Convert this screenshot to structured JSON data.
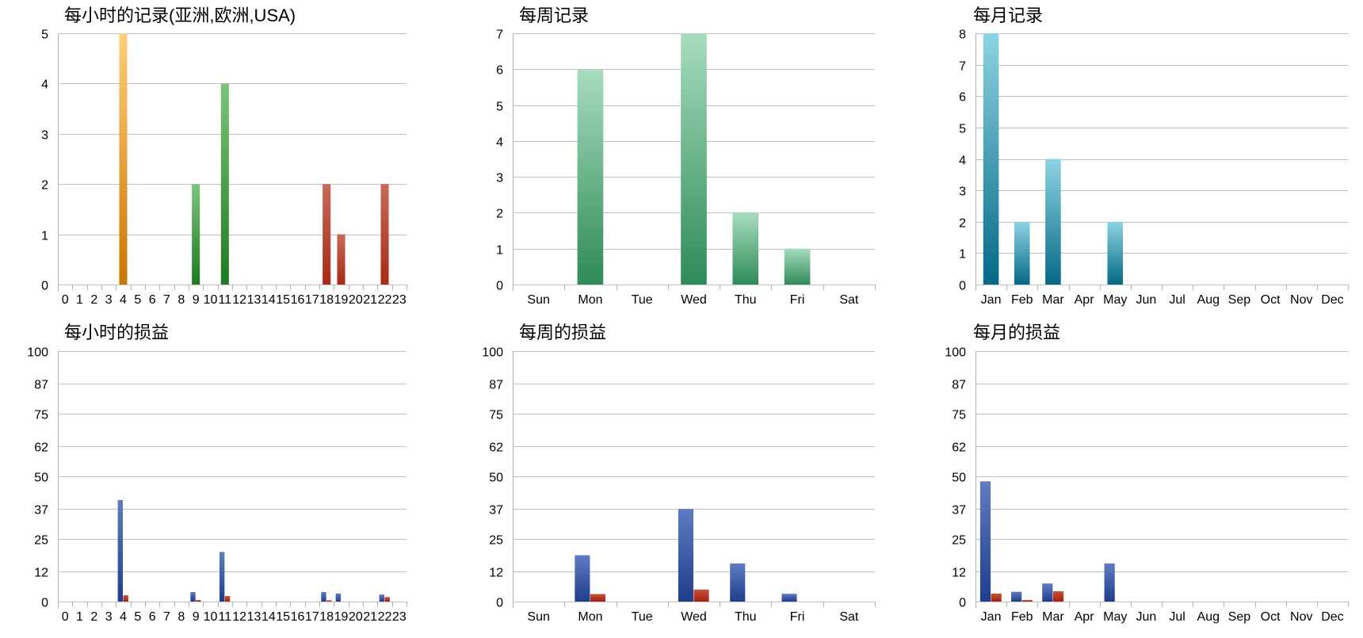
{
  "chart_data": [
    {
      "id": "hourly-records",
      "type": "bar",
      "title": "每小时的记录(亚洲,欧洲,USA)",
      "categories": [
        "0",
        "1",
        "2",
        "3",
        "4",
        "5",
        "6",
        "7",
        "8",
        "9",
        "10",
        "11",
        "12",
        "13",
        "14",
        "15",
        "16",
        "17",
        "18",
        "19",
        "20",
        "21",
        "22",
        "23"
      ],
      "values": [
        0,
        0,
        0,
        0,
        5,
        0,
        0,
        0,
        0,
        2,
        0,
        4,
        0,
        0,
        0,
        0,
        0,
        0,
        2,
        1,
        0,
        0,
        2,
        0
      ],
      "bar_colors": [
        "#a85d00",
        "#a85d00",
        "#a85d00",
        "#a85d00",
        "#c97800",
        "#a85d00",
        "#a85d00",
        "#a85d00",
        "#a85d00",
        "#1e7a1e",
        "#1e7a1e",
        "#1e7a1e",
        "#1e7a1e",
        "#1e7a1e",
        "#1e7a1e",
        "#1e7a1e",
        "#1e7a1e",
        "#1e7a1e",
        "#a82a14",
        "#a82a14",
        "#a82a14",
        "#a82a14",
        "#a82a14",
        "#a82a14"
      ],
      "bar_colors_light": [
        "#ffc86e",
        "#ffc86e",
        "#ffc86e",
        "#ffc86e",
        "#ffcf7a",
        "#ffc86e",
        "#ffc86e",
        "#ffc86e",
        "#ffc86e",
        "#7cc47c",
        "#7cc47c",
        "#7cc47c",
        "#7cc47c",
        "#7cc47c",
        "#7cc47c",
        "#7cc47c",
        "#7cc47c",
        "#7cc47c",
        "#c76a5a",
        "#c76a5a",
        "#c76a5a",
        "#c76a5a",
        "#c76a5a",
        "#c76a5a"
      ],
      "yticks": [
        0,
        1,
        2,
        3,
        4,
        5
      ],
      "ylim": [
        0,
        5
      ],
      "grid": true
    },
    {
      "id": "weekly-records",
      "type": "bar",
      "title": "每周记录",
      "categories": [
        "Sun",
        "Mon",
        "Tue",
        "Wed",
        "Thu",
        "Fri",
        "Sat"
      ],
      "values": [
        0,
        6,
        0,
        7,
        2,
        1,
        0
      ],
      "color": "#2e8b57",
      "color_light": "#a8dcbf",
      "yticks": [
        0,
        1,
        2,
        3,
        4,
        5,
        6,
        7
      ],
      "ylim": [
        0,
        7
      ],
      "grid": true
    },
    {
      "id": "monthly-records",
      "type": "bar",
      "title": "每月记录",
      "categories": [
        "Jan",
        "Feb",
        "Mar",
        "Apr",
        "May",
        "Jun",
        "Jul",
        "Aug",
        "Sep",
        "Oct",
        "Nov",
        "Dec"
      ],
      "values": [
        8,
        2,
        4,
        0,
        2,
        0,
        0,
        0,
        0,
        0,
        0,
        0
      ],
      "color": "#046985",
      "color_light": "#8ed3e3",
      "yticks": [
        0,
        1,
        2,
        3,
        4,
        5,
        6,
        7,
        8
      ],
      "ylim": [
        0,
        8
      ],
      "grid": true
    },
    {
      "id": "hourly-pnl",
      "type": "bar",
      "title": "每小时的损益",
      "categories": [
        "0",
        "1",
        "2",
        "3",
        "4",
        "5",
        "6",
        "7",
        "8",
        "9",
        "10",
        "11",
        "12",
        "13",
        "14",
        "15",
        "16",
        "17",
        "18",
        "19",
        "20",
        "21",
        "22",
        "23"
      ],
      "series": [
        {
          "values": [
            0,
            0,
            0,
            0,
            40.5,
            0,
            0,
            0,
            0,
            3.8,
            0,
            19.8,
            0,
            0,
            0,
            0,
            0,
            0,
            3.8,
            3.2,
            0,
            0,
            2.8,
            0
          ],
          "color": "#1f3d8c",
          "color_light": "#5f7cc2"
        },
        {
          "values": [
            0,
            0,
            0,
            0,
            2.5,
            0,
            0,
            0,
            0,
            0.6,
            0,
            2.2,
            0,
            0,
            0,
            0,
            0,
            0,
            0.5,
            0,
            0,
            0,
            1.8,
            0
          ],
          "color": "#a5200b",
          "color_light": "#c7533d"
        }
      ],
      "yticks": [
        "0",
        "12",
        "25",
        "37",
        "50",
        "62",
        "75",
        "87",
        "100"
      ],
      "ylim": [
        0,
        100
      ],
      "grid": true
    },
    {
      "id": "weekly-pnl",
      "type": "bar",
      "title": "每周的损益",
      "categories": [
        "Sun",
        "Mon",
        "Tue",
        "Wed",
        "Thu",
        "Fri",
        "Sat"
      ],
      "series": [
        {
          "values": [
            0,
            18.5,
            0,
            37,
            15.2,
            3.1,
            0
          ],
          "color": "#1f3d8c",
          "color_light": "#5f7cc2"
        },
        {
          "values": [
            0,
            3,
            0,
            4.8,
            0,
            0,
            0
          ],
          "color": "#a5200b",
          "color_light": "#c7533d"
        }
      ],
      "yticks": [
        "0",
        "12",
        "25",
        "37",
        "50",
        "62",
        "75",
        "87",
        "100"
      ],
      "ylim": [
        0,
        100
      ],
      "grid": true
    },
    {
      "id": "monthly-pnl",
      "type": "bar",
      "title": "每月的损益",
      "categories": [
        "Jan",
        "Feb",
        "Mar",
        "Apr",
        "May",
        "Jun",
        "Jul",
        "Aug",
        "Sep",
        "Oct",
        "Nov",
        "Dec"
      ],
      "series": [
        {
          "values": [
            48,
            3.9,
            7.2,
            0,
            15.2,
            0,
            0,
            0,
            0,
            0,
            0,
            0
          ],
          "color": "#1f3d8c",
          "color_light": "#5f7cc2"
        },
        {
          "values": [
            3.2,
            0.6,
            4.1,
            0,
            0,
            0,
            0,
            0,
            0,
            0,
            0,
            0
          ],
          "color": "#a5200b",
          "color_light": "#c7533d"
        }
      ],
      "yticks": [
        "0",
        "12",
        "25",
        "37",
        "50",
        "62",
        "75",
        "87",
        "100"
      ],
      "ylim": [
        0,
        100
      ],
      "grid": true
    }
  ]
}
